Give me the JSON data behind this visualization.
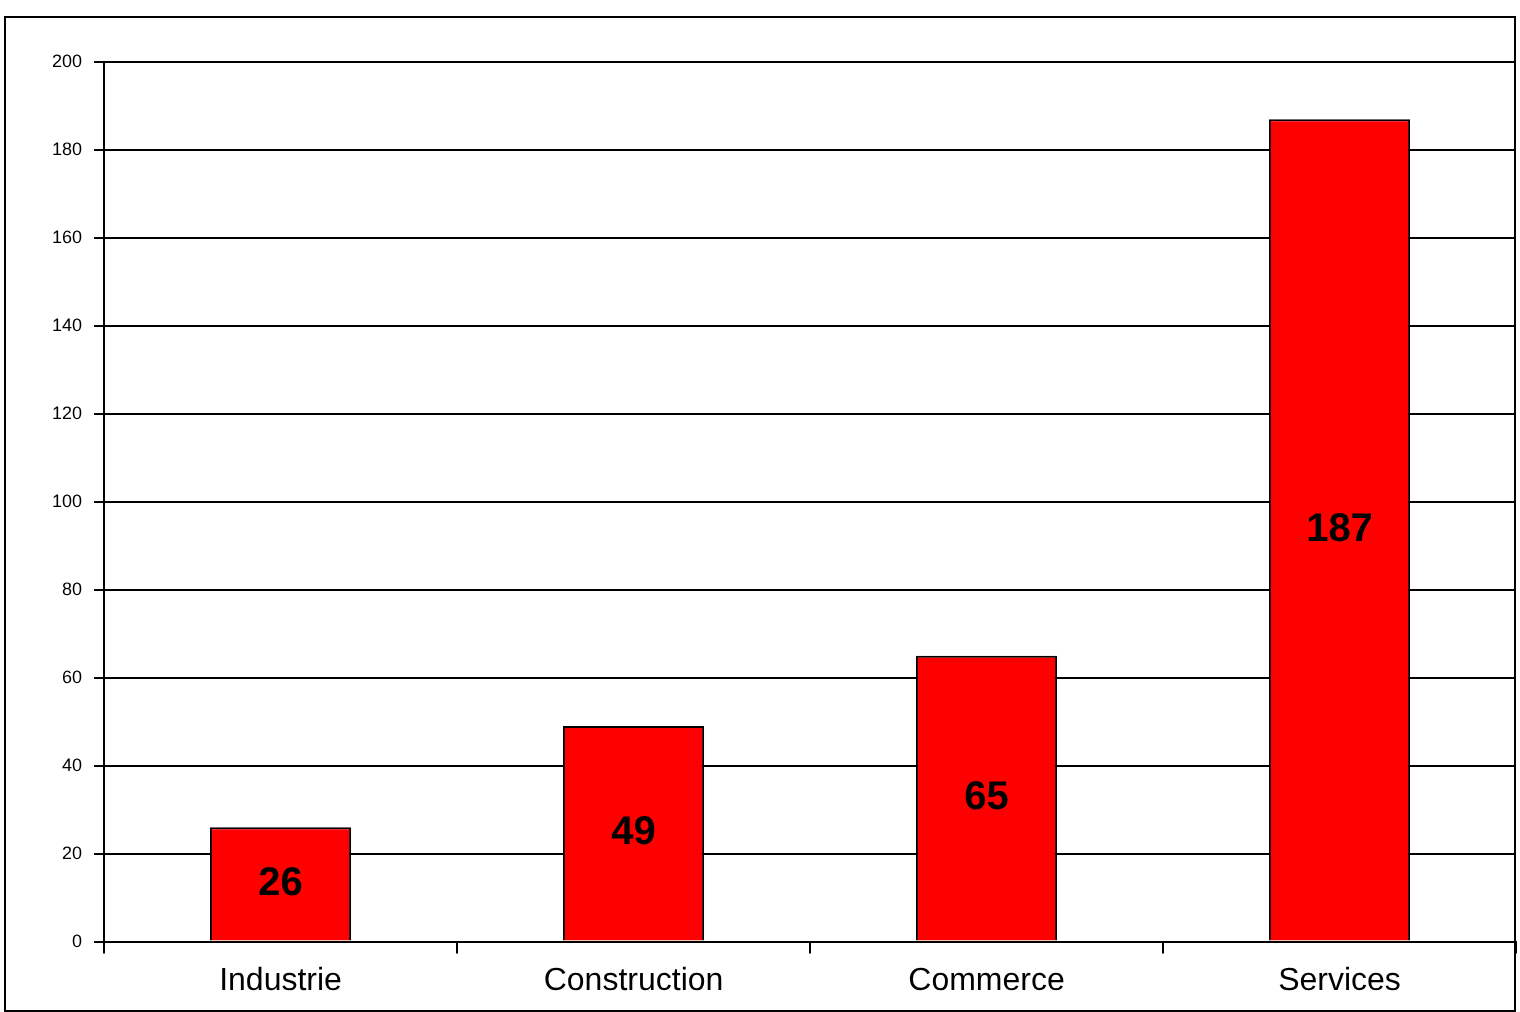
{
  "chart_data": {
    "type": "bar",
    "categories": [
      "Industrie",
      "Construction",
      "Commerce",
      "Services"
    ],
    "values": [
      26,
      49,
      65,
      187
    ],
    "color": "#ff0000",
    "ylim": [
      0,
      200
    ],
    "yticks": [
      0,
      20,
      40,
      60,
      80,
      100,
      120,
      140,
      160,
      180,
      200
    ],
    "grid": "y",
    "data_labels": true,
    "legend": false
  }
}
